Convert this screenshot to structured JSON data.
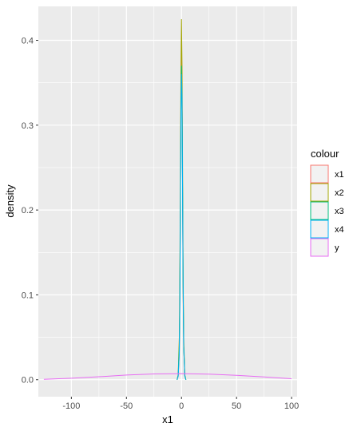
{
  "chart_data": {
    "type": "line",
    "subtype": "density",
    "xlabel": "x1",
    "ylabel": "density",
    "xlim": [
      -130,
      105
    ],
    "ylim": [
      -0.02,
      0.44
    ],
    "x_ticks": [
      -100,
      -50,
      0,
      50,
      100
    ],
    "y_ticks": [
      0.0,
      0.1,
      0.2,
      0.3,
      0.4
    ],
    "x_tick_labels": [
      "-100",
      "-50",
      "0",
      "50",
      "100"
    ],
    "y_tick_labels": [
      "0.0",
      "0.1",
      "0.2",
      "0.3",
      "0.4"
    ],
    "grid": true,
    "legend": {
      "title": "colour",
      "placement": "right"
    },
    "panel_background": "#ebebeb",
    "gridline_color": "#ffffff",
    "series": [
      {
        "name": "x1",
        "color": "#F8766D",
        "x": [
          -4,
          -3,
          -2,
          -1.5,
          -1,
          -0.5,
          0,
          0.5,
          1,
          1.5,
          2,
          3,
          4
        ],
        "y": [
          0.0,
          0.004,
          0.03,
          0.09,
          0.2,
          0.33,
          0.39,
          0.34,
          0.21,
          0.1,
          0.04,
          0.005,
          0.0
        ]
      },
      {
        "name": "x2",
        "color": "#A3A500",
        "x": [
          -4,
          -3,
          -2,
          -1.5,
          -1,
          -0.5,
          0,
          0.5,
          1,
          1.5,
          2,
          3,
          4
        ],
        "y": [
          0.0,
          0.006,
          0.05,
          0.12,
          0.24,
          0.36,
          0.425,
          0.37,
          0.25,
          0.13,
          0.05,
          0.006,
          0.0
        ]
      },
      {
        "name": "x3",
        "color": "#00BF7D",
        "x": [
          -4,
          -3,
          -2,
          -1.5,
          -1,
          -0.5,
          0,
          0.5,
          1,
          1.5,
          2,
          3,
          4
        ],
        "y": [
          0.0,
          0.005,
          0.04,
          0.1,
          0.21,
          0.32,
          0.37,
          0.33,
          0.22,
          0.11,
          0.04,
          0.005,
          0.0
        ]
      },
      {
        "name": "x4",
        "color": "#00B0F6",
        "x": [
          -4,
          -3,
          -2,
          -1.5,
          -1,
          -0.5,
          0,
          0.5,
          1,
          1.5,
          2,
          3,
          4
        ],
        "y": [
          0.0,
          0.004,
          0.03,
          0.09,
          0.19,
          0.3,
          0.36,
          0.33,
          0.22,
          0.11,
          0.04,
          0.004,
          0.0
        ]
      },
      {
        "name": "y",
        "color": "#E76BF3",
        "x": [
          -125,
          -100,
          -75,
          -50,
          -25,
          0,
          25,
          50,
          75,
          100
        ],
        "y": [
          0.0005,
          0.0018,
          0.0035,
          0.0055,
          0.0068,
          0.0072,
          0.0066,
          0.0052,
          0.0033,
          0.0012
        ]
      }
    ]
  }
}
